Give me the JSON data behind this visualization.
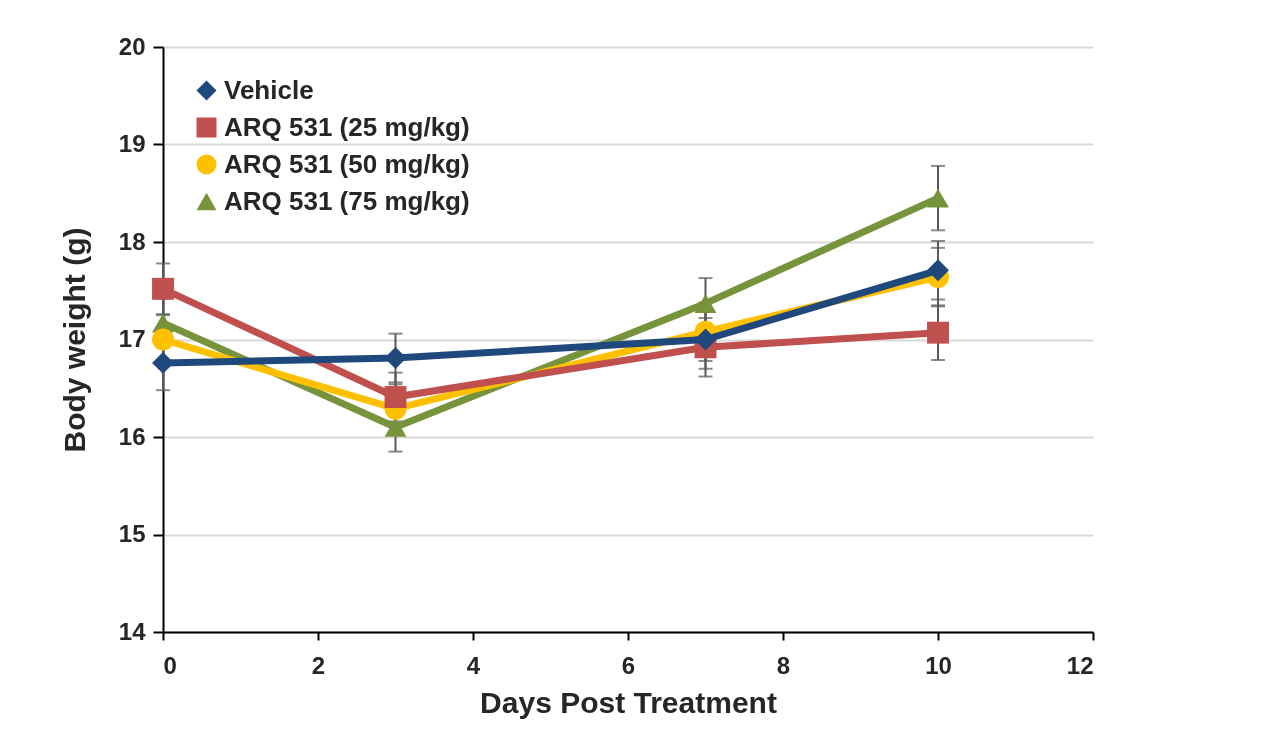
{
  "chart_data": {
    "type": "line",
    "xlabel": "Days Post Treatment",
    "ylabel": "Body weight (g)",
    "x": [
      0,
      3,
      7,
      10
    ],
    "xlim": [
      0,
      12
    ],
    "xticks": [
      0,
      2,
      4,
      6,
      8,
      10,
      12
    ],
    "ylim": [
      14,
      20
    ],
    "yticks": [
      14,
      15,
      16,
      17,
      18,
      19,
      20
    ],
    "grid": "y",
    "legend": "top left",
    "line_style": "solid",
    "series": [
      {
        "name": "Vehicle",
        "color": "#1f497d",
        "marker": "diamond",
        "values": [
          16.76,
          16.81,
          17.0,
          17.71
        ],
        "errors": [
          0.28,
          0.25,
          0.3,
          0.3
        ]
      },
      {
        "name": "ARQ 531 (25 mg/kg)",
        "color": "#c0504d",
        "marker": "square",
        "values": [
          17.52,
          16.41,
          16.92,
          17.07
        ],
        "errors": [
          0.26,
          0.25,
          0.3,
          0.28
        ]
      },
      {
        "name": "ARQ 531 (50 mg/kg)",
        "color": "#ffc000",
        "marker": "circle",
        "values": [
          17.0,
          16.29,
          17.08,
          17.64
        ],
        "errors": [
          0.25,
          0.25,
          0.3,
          0.3
        ]
      },
      {
        "name": "ARQ 531 (75 mg/kg)",
        "color": "#77933c",
        "marker": "triangle",
        "values": [
          17.17,
          16.1,
          17.37,
          18.45
        ],
        "errors": [
          0.25,
          0.25,
          0.26,
          0.33
        ]
      }
    ]
  }
}
